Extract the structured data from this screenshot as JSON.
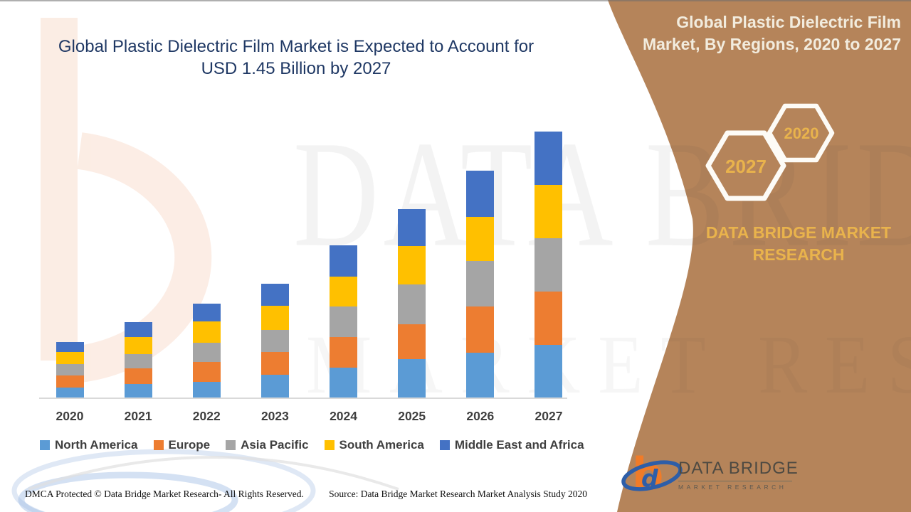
{
  "header": {
    "left_title_line1": "Global Plastic Dielectric Film Market is Expected to Account for",
    "left_title_line2": "USD 1.45 Billion by 2027",
    "panel_title_line1": "Global Plastic Dielectric Film",
    "panel_title_line2": "Market, By Regions, 2020 to 2027"
  },
  "side_panel": {
    "hexagon_front_label": "2027",
    "hexagon_back_label": "2020",
    "brand_line1": "DATA BRIDGE MARKET",
    "brand_line2": "RESEARCH",
    "colors": {
      "panel_brown": "#B5845A",
      "gold": "#E9B34C",
      "cream": "#F2ECDE"
    }
  },
  "chart_data": {
    "type": "bar",
    "stacked": true,
    "title": "Global Plastic Dielectric Film Market is Expected to Account for USD 1.45 Billion by 2027",
    "subtitle": "Global Plastic Dielectric Film Market, By Regions, 2020 to 2027",
    "unit": "USD Billion",
    "categories": [
      "2020",
      "2021",
      "2022",
      "2023",
      "2024",
      "2025",
      "2026",
      "2027"
    ],
    "series": [
      {
        "name": "North America",
        "color": "#5B9BD5",
        "values": [
          0.058,
          0.077,
          0.089,
          0.128,
          0.166,
          0.213,
          0.247,
          0.29
        ]
      },
      {
        "name": "Europe",
        "color": "#ED7D31",
        "values": [
          0.066,
          0.085,
          0.108,
          0.124,
          0.166,
          0.19,
          0.251,
          0.29
        ]
      },
      {
        "name": "Asia Pacific",
        "color": "#A5A5A5",
        "values": [
          0.062,
          0.077,
          0.104,
          0.12,
          0.166,
          0.217,
          0.247,
          0.29
        ]
      },
      {
        "name": "South America",
        "color": "#FFC000",
        "values": [
          0.066,
          0.093,
          0.116,
          0.131,
          0.162,
          0.209,
          0.24,
          0.29
        ]
      },
      {
        "name": "Middle East and Africa",
        "color": "#4472C4",
        "values": [
          0.054,
          0.081,
          0.097,
          0.12,
          0.17,
          0.201,
          0.251,
          0.29
        ]
      }
    ],
    "totals": [
      0.306,
      0.413,
      0.514,
      0.623,
      0.83,
      1.03,
      1.236,
      1.45
    ],
    "ylim": [
      0,
      1.45
    ],
    "gridlines": false,
    "y_axis_visible": false,
    "legend_position": "bottom",
    "annotation": "USD 1.45 Billion by 2027"
  },
  "watermark": {
    "line1": "DATA BRIDGE",
    "line2": "MARKET RESEARCH"
  },
  "logo": {
    "name": "DATA BRIDGE",
    "subname": "MARKET RESEARCH"
  },
  "footer": {
    "left": "DMCA Protected © Data Bridge Market Research- All Rights Reserved.",
    "right": "Source: Data Bridge Market Research Market Analysis Study 2020"
  }
}
